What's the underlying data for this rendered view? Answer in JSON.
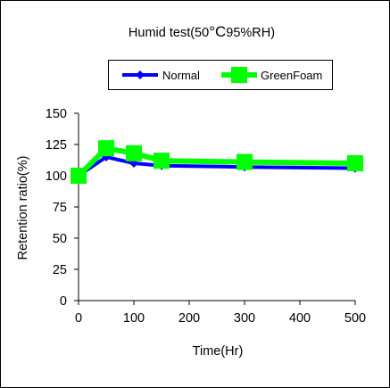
{
  "chart_data": {
    "type": "line",
    "title_prefix": "Humid  test(50",
    "title_deg": "°C",
    "title_suffix": "95%RH)",
    "xlabel": "Time(Hr)",
    "ylabel": "Retention ratio(%)",
    "x_ticks": [
      0,
      100,
      200,
      300,
      400,
      500
    ],
    "y_ticks": [
      0,
      25,
      50,
      75,
      100,
      125,
      150
    ],
    "xlim": [
      0,
      500
    ],
    "ylim": [
      0,
      150
    ],
    "grid": false,
    "legend_position": "top",
    "series": [
      {
        "name": "Normal",
        "color": "#0000ff",
        "marker": "diamond",
        "x": [
          0,
          50,
          100,
          150,
          300,
          500
        ],
        "y": [
          100,
          115,
          110,
          108,
          107,
          106
        ]
      },
      {
        "name": "GreenFoam",
        "color": "#00ff00",
        "marker": "square",
        "x": [
          0,
          50,
          100,
          150,
          300,
          500
        ],
        "y": [
          100,
          122,
          118,
          112,
          111,
          110
        ]
      }
    ]
  }
}
